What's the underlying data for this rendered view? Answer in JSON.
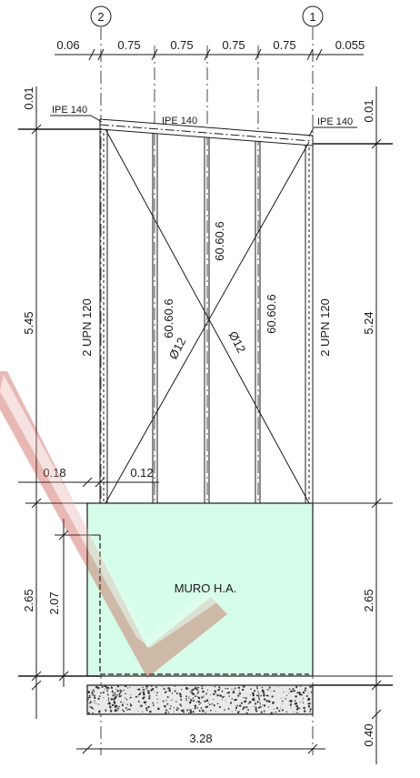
{
  "grid": {
    "left": "2",
    "right": "1"
  },
  "top_dims": [
    "0.06",
    "0.75",
    "0.75",
    "0.75",
    "0.75",
    "0.055"
  ],
  "left_top_offset": "0.01",
  "right_top_offset": "0.01",
  "profiles": {
    "beam_left": "IPE 140",
    "beam_mid": "IPE 140",
    "beam_right": "IPE 140",
    "column_left": "2 UPN 120",
    "column_right": "2 UPN 120",
    "post_a": "60.60.6",
    "post_b": "60.60.6",
    "post_c": "60.60.6",
    "brace_a": "Ø12",
    "brace_b": "Ø12"
  },
  "heights": {
    "left_frame": "5.45",
    "right_frame": "5.24",
    "left_wall": "2.65",
    "left_inner": "2.07",
    "right_wall": "2.65",
    "footing": "0.40"
  },
  "offsets": {
    "a": "0.18",
    "b": "0.12"
  },
  "wall_label": "MURO H.A.",
  "bottom_width": "3.28",
  "colors": {
    "wall_fill": "#d6fde9",
    "watermark": "#c0392b",
    "line": "#1a1a1a"
  }
}
